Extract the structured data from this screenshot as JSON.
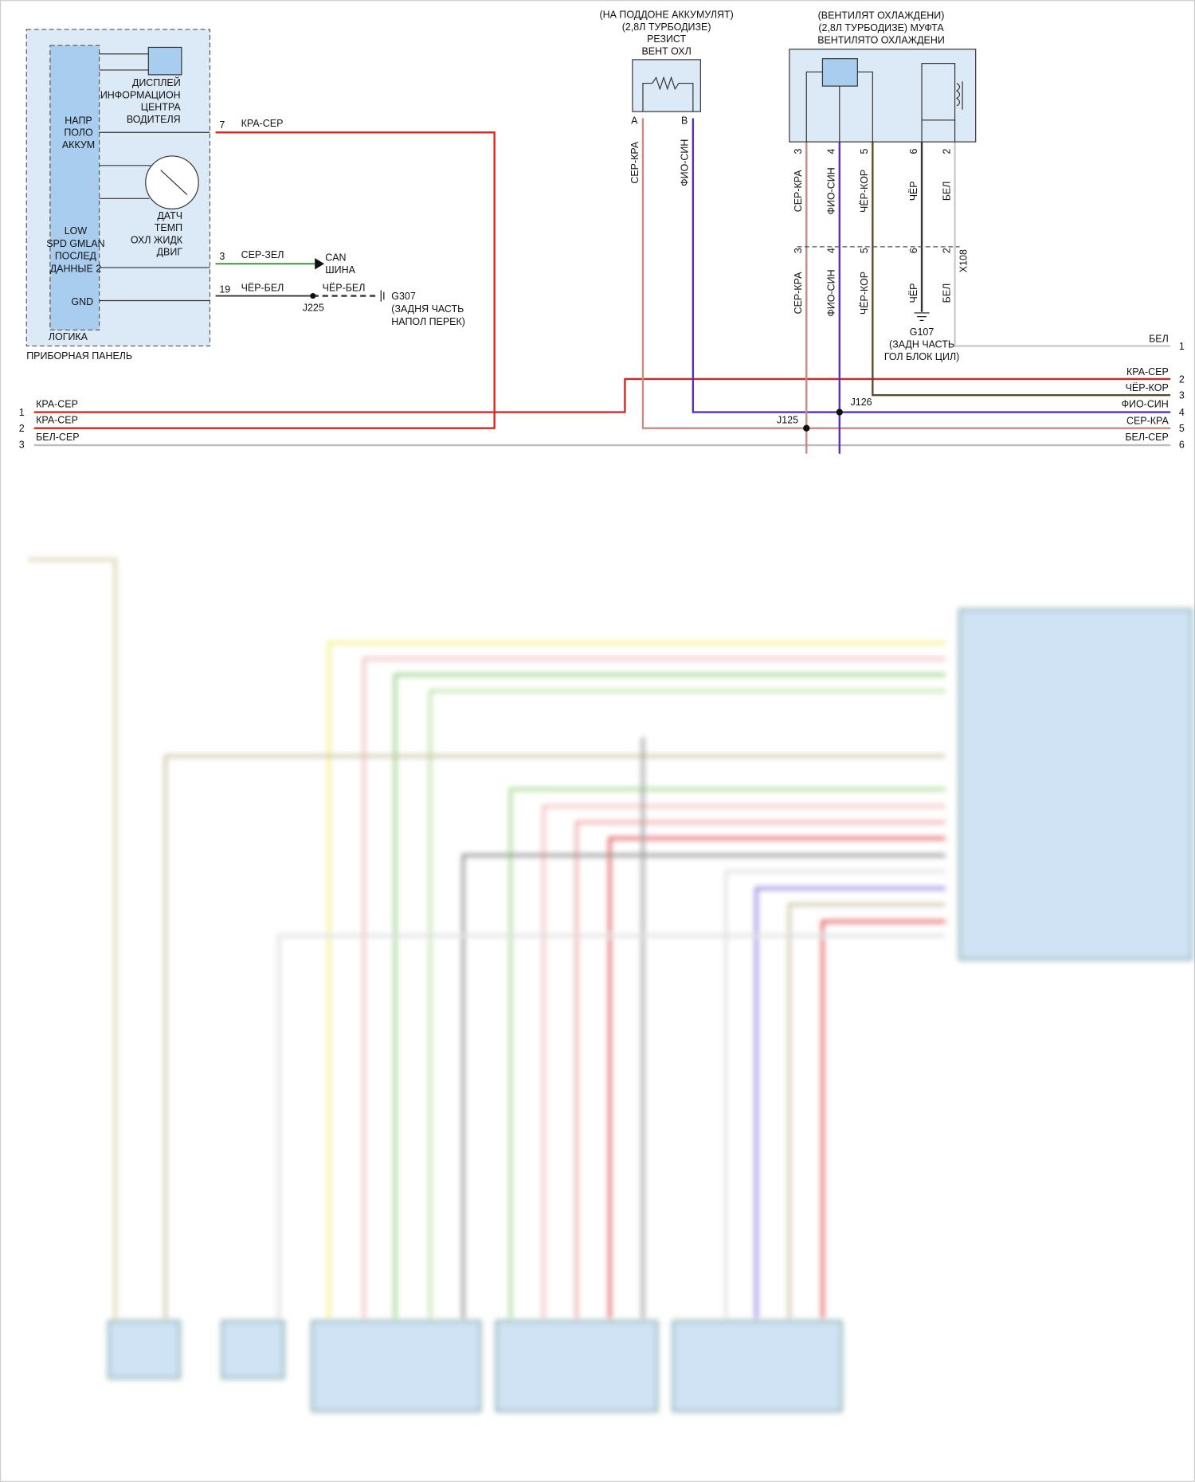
{
  "instrument_panel": {
    "name": "ПРИБОРНАЯ ПАНЕЛЬ",
    "logic": "ЛОГИКА",
    "display": [
      "ДИСПЛЕЙ",
      "ИНФОРМАЦИОН",
      "ЦЕНТРА",
      "ВОДИТЕЛЯ"
    ],
    "battery": [
      "НАПР",
      "ПОЛО",
      "АККУМ"
    ],
    "sensor": [
      "ДАТЧ",
      "ТЕМП",
      "ОХЛ ЖИДК",
      "ДВИГ"
    ],
    "gmlan": [
      "LOW",
      "SPD GMLAN",
      "ПОСЛЕД",
      "ДАННЫЕ 2"
    ],
    "gnd": "GND",
    "pins": [
      {
        "pin": "7",
        "wire": "КРА-СЕР"
      },
      {
        "pin": "3",
        "wire": "СЕР-ЗЕЛ"
      },
      {
        "pin": "19",
        "wire": "ЧЁР-БЕЛ"
      }
    ]
  },
  "can": [
    "CAN",
    "ШИНА"
  ],
  "splice_j225": "J225",
  "ground_wire": "ЧЁР-БЕЛ",
  "g307": [
    "G307",
    "(ЗАДНЯ ЧАСТЬ",
    "НАПОЛ ПЕРЕК)"
  ],
  "resistor": {
    "title": [
      "(НА ПОДДОНЕ АККУМУЛЯТ)",
      "(2,8Л ТУРБОДИЗЕ)",
      "РЕЗИСТ",
      "ВЕНТ ОХЛ"
    ],
    "pins": [
      {
        "pin": "A",
        "wire": "СЕР-КРА"
      },
      {
        "pin": "B",
        "wire": "ФИО-СИН"
      }
    ]
  },
  "clutch": {
    "title": [
      "(ВЕНТИЛЯТ ОХЛАЖДЕНИ)",
      "(2,8Л ТУРБОДИЗЕ) МУФТА",
      "ВЕНТИЛЯТО ОХЛАЖДЕНИ"
    ],
    "pins": [
      {
        "pin": "3",
        "wire": "СЕР-КРА"
      },
      {
        "pin": "4",
        "wire": "ФИО-СИН"
      },
      {
        "pin": "5",
        "wire": "ЧЁР-КОР"
      },
      {
        "pin": "6",
        "wire": "ЧЁР"
      },
      {
        "pin": "2",
        "wire": "БЕЛ"
      }
    ]
  },
  "connector": {
    "name": "X108",
    "pins": [
      "3",
      "4",
      "5",
      "6",
      "2"
    ],
    "wires": [
      "СЕР-КРА",
      "ФИО-СИН",
      "ЧЁР-КОР",
      "ЧЁР",
      "БЕЛ"
    ]
  },
  "g107": [
    "G107",
    "(ЗАДН ЧАСТЬ",
    "ГОЛ БЛОК ЦИЛ)"
  ],
  "splices": [
    "J125",
    "J126"
  ],
  "left_bus": [
    {
      "num": "1",
      "wire": "КРА-СЕР"
    },
    {
      "num": "2",
      "wire": "КРА-СЕР"
    },
    {
      "num": "3",
      "wire": "БЕЛ-СЕР"
    }
  ],
  "right_bus": [
    {
      "num": "1",
      "wire": "БЕЛ"
    },
    {
      "num": "2",
      "wire": "КРА-СЕР"
    },
    {
      "num": "3",
      "wire": "ЧЁР-КОР"
    },
    {
      "num": "4",
      "wire": "ФИО-СИН"
    },
    {
      "num": "5",
      "wire": "СЕР-КРА"
    },
    {
      "num": "6",
      "wire": "БЕЛ-СЕР"
    }
  ]
}
